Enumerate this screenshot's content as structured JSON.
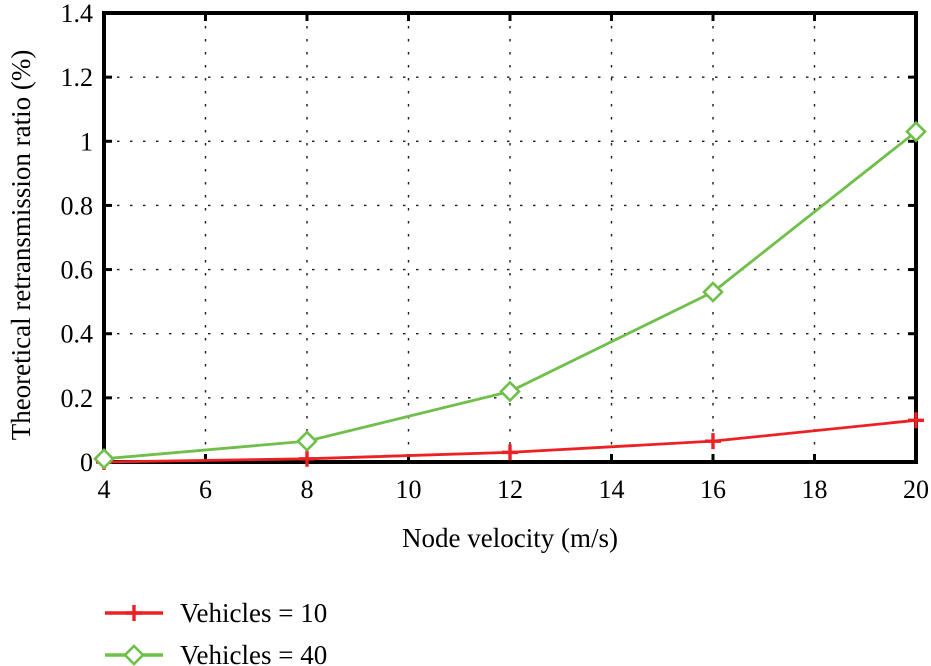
{
  "figure": {
    "background": "#ffffff",
    "text_color": "#000000"
  },
  "chart_data": {
    "type": "line",
    "xlabel": "Node velocity (m/s)",
    "ylabel": "Theoretical retransmission ratio (%)",
    "xlim": [
      4,
      20
    ],
    "ylim": [
      0,
      1.4
    ],
    "xticks": [
      4,
      6,
      8,
      10,
      12,
      14,
      16,
      18,
      20
    ],
    "yticks": [
      0,
      0.2,
      0.4,
      0.6,
      0.8,
      1,
      1.2,
      1.4
    ],
    "grid": "dotted",
    "legend_position": "below-left",
    "x": [
      4,
      8,
      12,
      16,
      20
    ],
    "series": [
      {
        "name": "Vehicles = 10",
        "color": "#ed2024",
        "marker": "plus",
        "values": [
          0.0,
          0.01,
          0.03,
          0.065,
          0.13
        ]
      },
      {
        "name": "Vehicles = 40",
        "color": "#6fbf4a",
        "marker": "diamond",
        "values": [
          0.01,
          0.065,
          0.22,
          0.53,
          1.03
        ]
      }
    ]
  }
}
